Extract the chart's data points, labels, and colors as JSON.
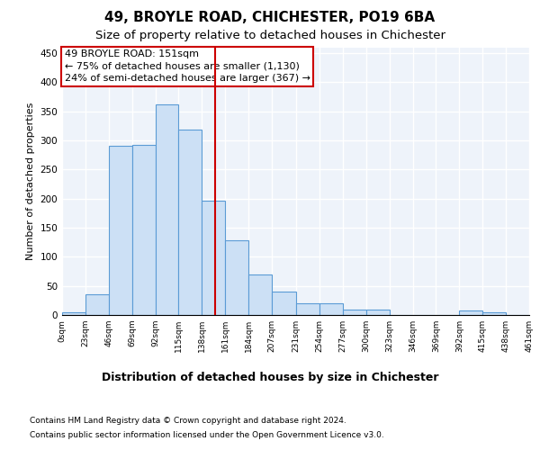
{
  "title1": "49, BROYLE ROAD, CHICHESTER, PO19 6BA",
  "title2": "Size of property relative to detached houses in Chichester",
  "xlabel": "Distribution of detached houses by size in Chichester",
  "ylabel": "Number of detached properties",
  "bin_edges": [
    0,
    23,
    46,
    69,
    92,
    115,
    138,
    161,
    184,
    207,
    231,
    254,
    277,
    300,
    323,
    346,
    369,
    392,
    415,
    438,
    461
  ],
  "bar_heights": [
    5,
    35,
    290,
    293,
    362,
    318,
    197,
    128,
    70,
    40,
    20,
    20,
    10,
    10,
    0,
    0,
    0,
    7,
    5,
    0
  ],
  "bar_facecolor": "#cce0f5",
  "bar_edgecolor": "#5b9bd5",
  "vline_x": 151,
  "vline_color": "#cc0000",
  "annotation_line1": "49 BROYLE ROAD: 151sqm",
  "annotation_line2": "← 75% of detached houses are smaller (1,130)",
  "annotation_line3": "24% of semi-detached houses are larger (367) →",
  "annotation_box_color": "#cc0000",
  "tick_labels": [
    "0sqm",
    "23sqm",
    "46sqm",
    "69sqm",
    "92sqm",
    "115sqm",
    "138sqm",
    "161sqm",
    "184sqm",
    "207sqm",
    "231sqm",
    "254sqm",
    "277sqm",
    "300sqm",
    "323sqm",
    "346sqm",
    "369sqm",
    "392sqm",
    "415sqm",
    "438sqm",
    "461sqm"
  ],
  "ylim": [
    0,
    460
  ],
  "yticks": [
    0,
    50,
    100,
    150,
    200,
    250,
    300,
    350,
    400,
    450
  ],
  "footer1": "Contains HM Land Registry data © Crown copyright and database right 2024.",
  "footer2": "Contains public sector information licensed under the Open Government Licence v3.0.",
  "bg_color": "#eef3fa",
  "grid_color": "#ffffff",
  "fig_bg": "#ffffff",
  "title1_fontsize": 11,
  "title2_fontsize": 9.5,
  "annotation_fontsize": 8,
  "footer_fontsize": 6.5,
  "ylabel_fontsize": 8,
  "xlabel_fontsize": 9,
  "tick_fontsize": 6.5,
  "ytick_fontsize": 7.5
}
